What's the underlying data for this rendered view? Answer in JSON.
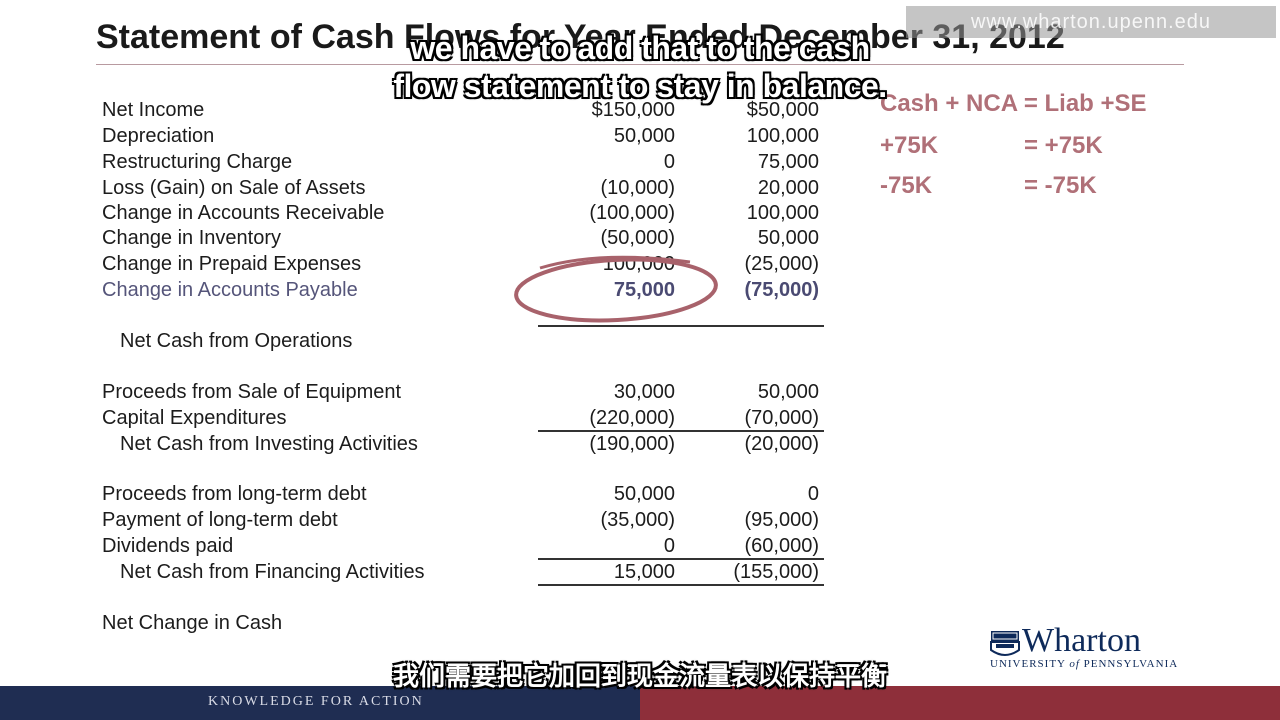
{
  "slide": {
    "title": "Statement of Cash Flows for Year Ended December 31, 2012",
    "watermark": "www.wharton.upenn.edu",
    "rows": [
      {
        "label": "Net Income",
        "v1": "$150,000",
        "v2": "$50,000"
      },
      {
        "label": "Depreciation",
        "v1": "50,000",
        "v2": "100,000"
      },
      {
        "label": "Restructuring Charge",
        "v1": "0",
        "v2": "75,000"
      },
      {
        "label": "Loss (Gain) on Sale of Assets",
        "v1": "(10,000)",
        "v2": "20,000"
      },
      {
        "label": "Change in Accounts Receivable",
        "v1": "(100,000)",
        "v2": "100,000"
      },
      {
        "label": "Change in Inventory",
        "v1": "(50,000)",
        "v2": "50,000"
      },
      {
        "label": "Change in Prepaid Expenses",
        "v1": "100,000",
        "v2": "(25,000)"
      },
      {
        "label": "Change in Accounts Payable",
        "v1": "75,000",
        "v2": "(75,000)"
      },
      {
        "label": "Net Cash from Operations",
        "v1": "",
        "v2": ""
      },
      {
        "label": "Proceeds from Sale of Equipment",
        "v1": "30,000",
        "v2": "50,000"
      },
      {
        "label": "Capital Expenditures",
        "v1": "(220,000)",
        "v2": "(70,000)"
      },
      {
        "label": "Net Cash from Investing Activities",
        "v1": "(190,000)",
        "v2": "(20,000)"
      },
      {
        "label": "Proceeds from long-term debt",
        "v1": "50,000",
        "v2": "0"
      },
      {
        "label": "Payment of long-term debt",
        "v1": "(35,000)",
        "v2": "(95,000)"
      },
      {
        "label": "Dividends paid",
        "v1": "0",
        "v2": "(60,000)"
      },
      {
        "label": "Net Cash from Financing Activities",
        "v1": "15,000",
        "v2": "(155,000)"
      },
      {
        "label": "Net Change in Cash",
        "v1": "",
        "v2": ""
      }
    ],
    "equation": {
      "title": "Cash + NCA = Liab +SE",
      "line1_left": "+75K",
      "line1_right": "=  +75K",
      "line2_left": "-75K",
      "line2_right": "=  -75K"
    },
    "subtitle_en_1": "we have to add that to the cash",
    "subtitle_en_2": "flow statement to stay in balance.",
    "subtitle_cn": "我们需要把它加回到现金流量表以保持平衡",
    "footer": "KNOWLEDGE FOR ACTION",
    "logo": {
      "word": "Wharton",
      "sub_1": "UNIVERSITY ",
      "sub_of": "of",
      "sub_2": " PENNSYLVANIA"
    },
    "colors": {
      "accent": "#b07078",
      "navy": "#1f2d52",
      "crimson": "#8e2f3a",
      "oval": "#a8626b"
    }
  }
}
